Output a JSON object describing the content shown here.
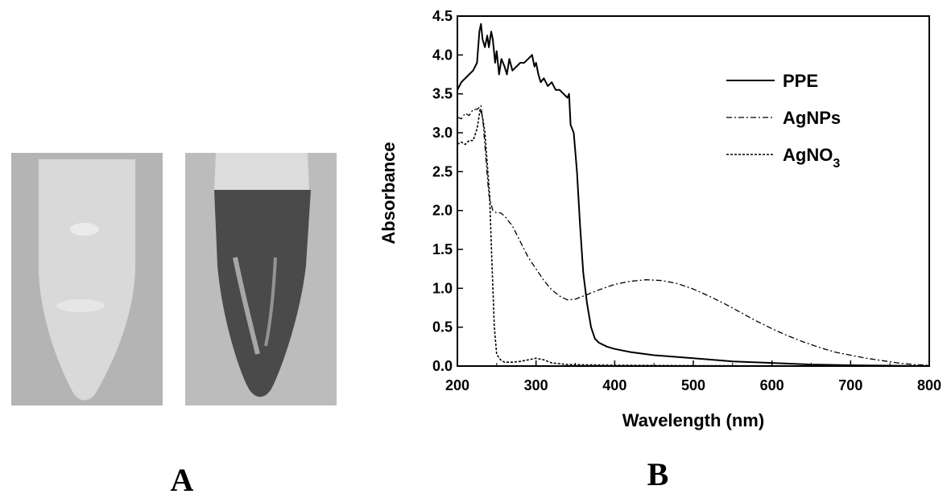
{
  "panels": {
    "a_label": "A",
    "b_label": "B"
  },
  "photo": {
    "tube_left": {
      "background": "#b4b4b4",
      "liquid": "#d9d9d9"
    },
    "tube_right": {
      "background": "#bcbcbc",
      "liquid": "#4a4a4a"
    }
  },
  "chart_data": {
    "type": "line",
    "xlabel": "Wavelength (nm)",
    "ylabel": "Absorbance",
    "xlim": [
      200,
      800
    ],
    "ylim": [
      0,
      4.5
    ],
    "xticks": [
      200,
      300,
      400,
      500,
      600,
      700,
      800
    ],
    "yticks": [
      0.0,
      0.5,
      1.0,
      1.5,
      2.0,
      2.5,
      3.0,
      3.5,
      4.0,
      4.5
    ],
    "legend_position": "top-right",
    "series": [
      {
        "name": "PPE",
        "style": "solid",
        "points": [
          [
            200,
            3.55
          ],
          [
            205,
            3.65
          ],
          [
            210,
            3.7
          ],
          [
            215,
            3.75
          ],
          [
            220,
            3.8
          ],
          [
            225,
            3.9
          ],
          [
            228,
            4.3
          ],
          [
            230,
            4.4
          ],
          [
            232,
            4.2
          ],
          [
            235,
            4.1
          ],
          [
            238,
            4.25
          ],
          [
            240,
            4.1
          ],
          [
            243,
            4.3
          ],
          [
            245,
            4.2
          ],
          [
            248,
            3.9
          ],
          [
            250,
            4.05
          ],
          [
            253,
            3.75
          ],
          [
            256,
            3.95
          ],
          [
            260,
            3.85
          ],
          [
            263,
            3.75
          ],
          [
            266,
            3.95
          ],
          [
            270,
            3.8
          ],
          [
            275,
            3.85
          ],
          [
            280,
            3.9
          ],
          [
            285,
            3.9
          ],
          [
            290,
            3.95
          ],
          [
            295,
            4.0
          ],
          [
            298,
            3.85
          ],
          [
            300,
            3.9
          ],
          [
            303,
            3.75
          ],
          [
            306,
            3.65
          ],
          [
            310,
            3.7
          ],
          [
            315,
            3.6
          ],
          [
            320,
            3.65
          ],
          [
            325,
            3.55
          ],
          [
            330,
            3.55
          ],
          [
            335,
            3.5
          ],
          [
            340,
            3.45
          ],
          [
            342,
            3.5
          ],
          [
            344,
            3.1
          ],
          [
            348,
            3.0
          ],
          [
            352,
            2.5
          ],
          [
            356,
            1.8
          ],
          [
            360,
            1.2
          ],
          [
            365,
            0.8
          ],
          [
            370,
            0.5
          ],
          [
            375,
            0.35
          ],
          [
            380,
            0.3
          ],
          [
            390,
            0.25
          ],
          [
            400,
            0.22
          ],
          [
            420,
            0.18
          ],
          [
            450,
            0.14
          ],
          [
            500,
            0.1
          ],
          [
            550,
            0.06
          ],
          [
            600,
            0.04
          ],
          [
            650,
            0.02
          ],
          [
            700,
            0.01
          ],
          [
            750,
            0.005
          ],
          [
            800,
            0.0
          ]
        ]
      },
      {
        "name": "AgNPs",
        "style": "dash-dot",
        "points": [
          [
            200,
            3.2
          ],
          [
            205,
            3.18
          ],
          [
            210,
            3.25
          ],
          [
            215,
            3.22
          ],
          [
            220,
            3.3
          ],
          [
            225,
            3.3
          ],
          [
            230,
            3.35
          ],
          [
            233,
            3.1
          ],
          [
            236,
            2.7
          ],
          [
            240,
            2.2
          ],
          [
            245,
            2.0
          ],
          [
            250,
            1.97
          ],
          [
            255,
            1.97
          ],
          [
            260,
            1.93
          ],
          [
            270,
            1.8
          ],
          [
            280,
            1.6
          ],
          [
            290,
            1.4
          ],
          [
            300,
            1.25
          ],
          [
            310,
            1.1
          ],
          [
            320,
            0.98
          ],
          [
            330,
            0.9
          ],
          [
            340,
            0.85
          ],
          [
            350,
            0.86
          ],
          [
            360,
            0.9
          ],
          [
            380,
            0.98
          ],
          [
            400,
            1.05
          ],
          [
            420,
            1.09
          ],
          [
            440,
            1.11
          ],
          [
            460,
            1.1
          ],
          [
            480,
            1.06
          ],
          [
            500,
            0.99
          ],
          [
            520,
            0.9
          ],
          [
            540,
            0.8
          ],
          [
            560,
            0.69
          ],
          [
            580,
            0.58
          ],
          [
            600,
            0.48
          ],
          [
            620,
            0.39
          ],
          [
            640,
            0.31
          ],
          [
            660,
            0.24
          ],
          [
            680,
            0.18
          ],
          [
            700,
            0.14
          ],
          [
            720,
            0.1
          ],
          [
            740,
            0.07
          ],
          [
            760,
            0.04
          ],
          [
            780,
            0.02
          ],
          [
            800,
            0.01
          ]
        ]
      },
      {
        "name": "AgNO",
        "name_subscript": "3",
        "style": "dotted",
        "points": [
          [
            200,
            2.85
          ],
          [
            205,
            2.88
          ],
          [
            210,
            2.85
          ],
          [
            215,
            2.9
          ],
          [
            220,
            2.9
          ],
          [
            225,
            3.05
          ],
          [
            229,
            3.3
          ],
          [
            232,
            3.2
          ],
          [
            235,
            3.0
          ],
          [
            238,
            2.6
          ],
          [
            241,
            2.2
          ],
          [
            244,
            1.3
          ],
          [
            247,
            0.5
          ],
          [
            250,
            0.15
          ],
          [
            255,
            0.08
          ],
          [
            260,
            0.05
          ],
          [
            270,
            0.05
          ],
          [
            280,
            0.06
          ],
          [
            290,
            0.08
          ],
          [
            300,
            0.1
          ],
          [
            310,
            0.08
          ],
          [
            320,
            0.04
          ],
          [
            340,
            0.02
          ],
          [
            400,
            0.01
          ],
          [
            500,
            0.005
          ],
          [
            600,
            0.003
          ],
          [
            800,
            0.0
          ]
        ]
      }
    ]
  }
}
